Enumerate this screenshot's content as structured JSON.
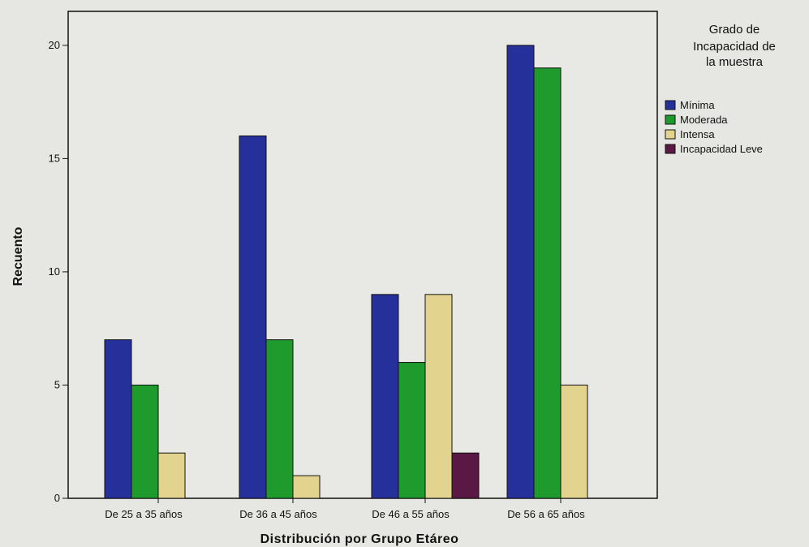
{
  "chart_data": {
    "type": "bar",
    "title": "",
    "xlabel": "Distribución por Grupo Etáreo",
    "ylabel": "Recuento",
    "ylim": [
      0,
      21.5
    ],
    "yticks": [
      0,
      5,
      10,
      15,
      20
    ],
    "categories": [
      "De 25 a 35 años",
      "De 36 a 45 años",
      "De 46 a 55 años",
      "De 56 a 65 años"
    ],
    "series": [
      {
        "name": "Mínima",
        "color": "#26309a",
        "values": [
          7,
          16,
          9,
          20
        ]
      },
      {
        "name": "Moderada",
        "color": "#1f9a2c",
        "values": [
          5,
          7,
          6,
          19
        ]
      },
      {
        "name": "Intensa",
        "color": "#e2d48f",
        "values": [
          2,
          1,
          9,
          5
        ]
      },
      {
        "name": "Incapacidad Leve",
        "color": "#5a1845",
        "values": [
          null,
          null,
          2,
          null
        ]
      }
    ],
    "legend": {
      "title_lines": [
        "Grado de",
        "Incapacidad de",
        "la muestra"
      ],
      "position": "top-right"
    },
    "grid": false
  }
}
